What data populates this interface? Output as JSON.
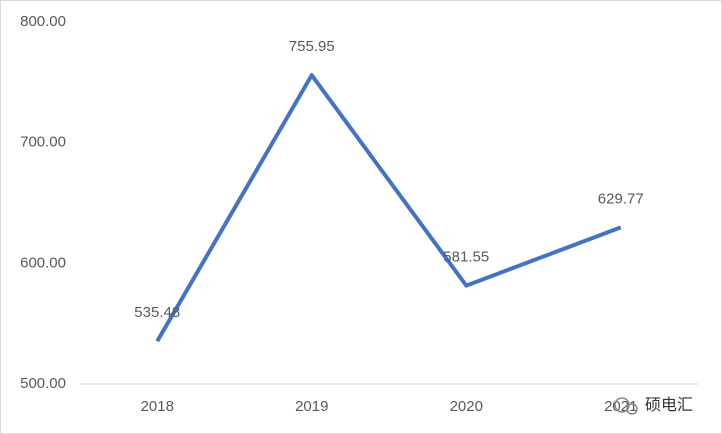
{
  "chart_data": {
    "type": "line",
    "categories": [
      "2018",
      "2019",
      "2020",
      "2021"
    ],
    "series": [
      {
        "name": "value",
        "color": "#4472c4",
        "values": [
          535.48,
          755.95,
          581.55,
          629.77
        ]
      }
    ],
    "ylim": [
      500,
      800
    ],
    "yticks": [
      {
        "value": 500,
        "label": "500.00"
      },
      {
        "value": 600,
        "label": "600.00"
      },
      {
        "value": 700,
        "label": "700.00"
      },
      {
        "value": 800,
        "label": "800.00"
      }
    ],
    "grid": false,
    "data_labels": true,
    "watermark": "硕电汇"
  }
}
